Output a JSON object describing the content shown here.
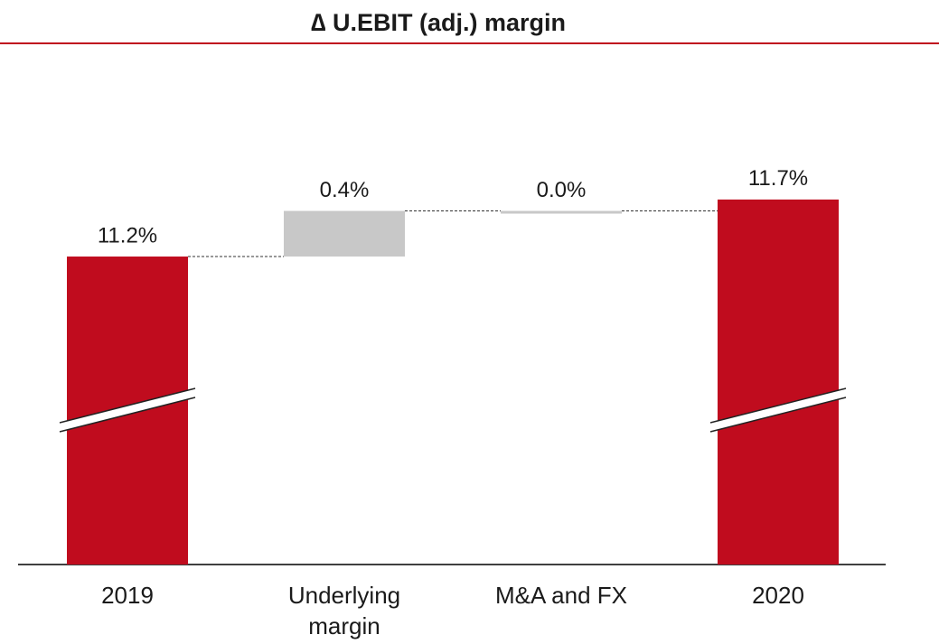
{
  "chart_data": {
    "type": "waterfall",
    "title": "∆ U.EBIT (adj.) margin",
    "categories": [
      "2019",
      "Underlying margin",
      "M&A and FX",
      "2020"
    ],
    "values": [
      11.2,
      0.4,
      0.0,
      11.7
    ],
    "value_labels": [
      "11.2%",
      "0.4%",
      "0.0%",
      "11.7%"
    ],
    "measures": [
      "absolute",
      "relative",
      "relative",
      "total"
    ],
    "total_color": "#c00c1e",
    "delta_color": "#c8c8c8",
    "ylim": [
      8.5,
      12.0
    ],
    "axis_break": true
  }
}
